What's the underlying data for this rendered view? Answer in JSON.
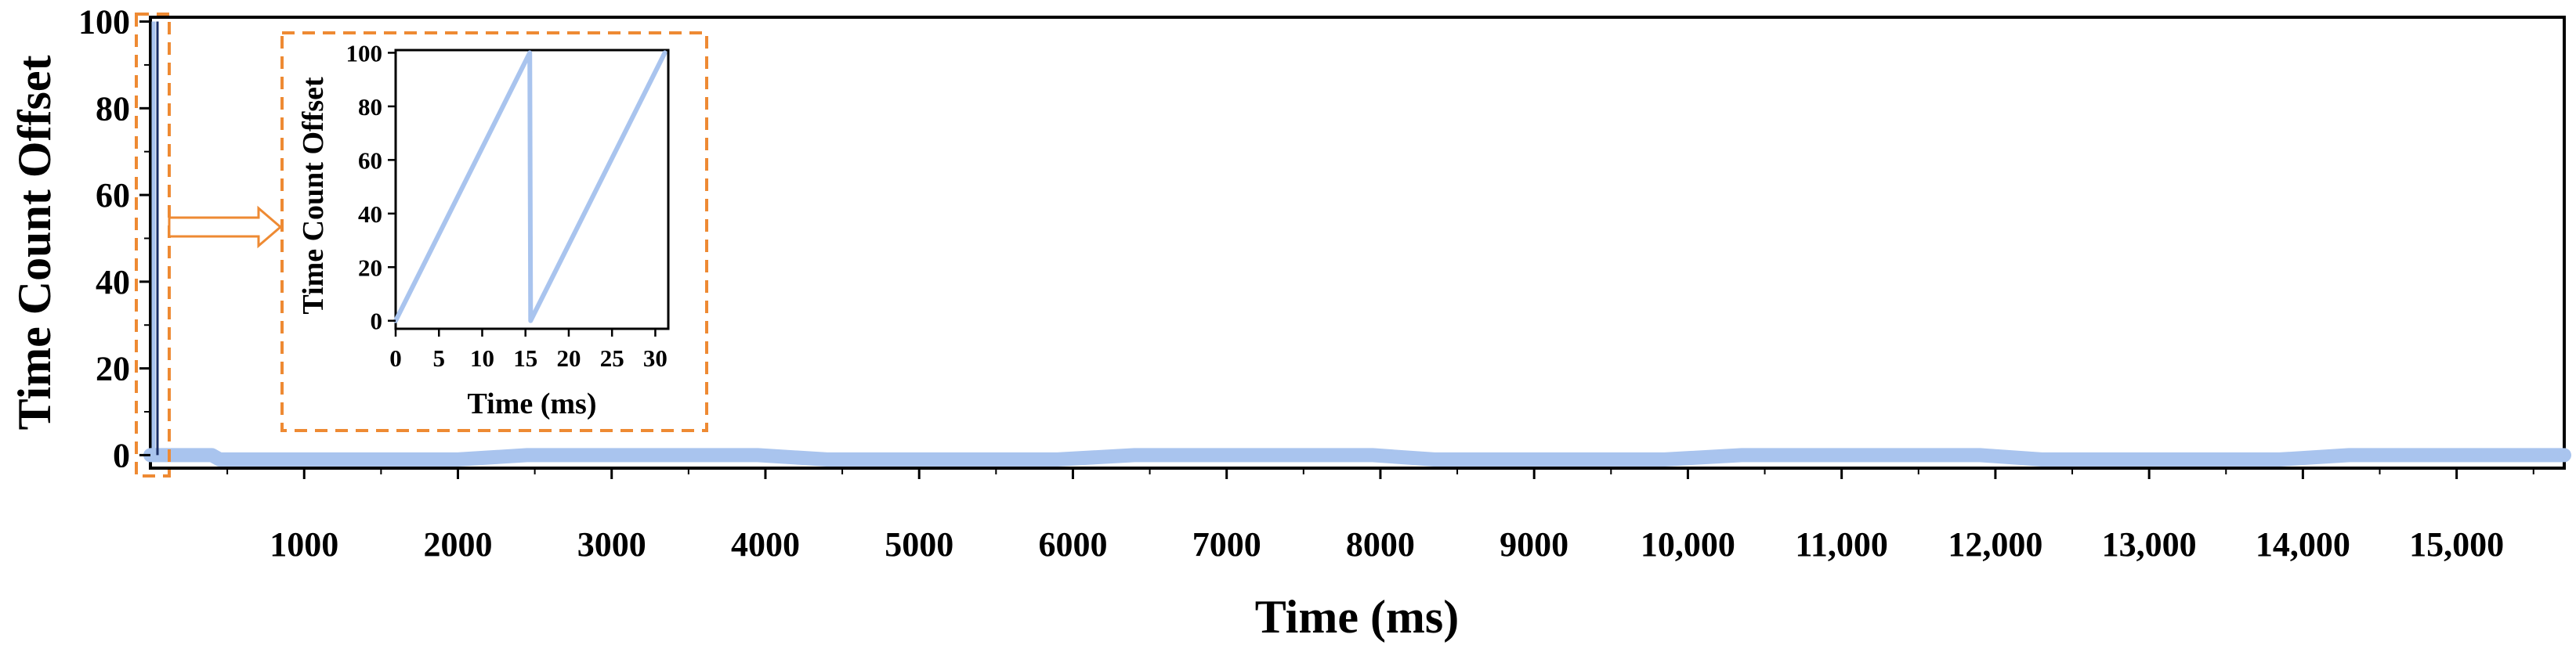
{
  "colors": {
    "series": "#a9c4ee",
    "highlight": "#ee8a33",
    "axis": "#000000"
  },
  "chart_data": [
    {
      "type": "line",
      "name": "main",
      "xlabel": "Time (ms)",
      "ylabel": "Time Count Offset",
      "xlim": [
        0,
        15700
      ],
      "ylim": [
        -3,
        101
      ],
      "xticks": [
        {
          "value": 1000,
          "label": "1000"
        },
        {
          "value": 2000,
          "label": "2000"
        },
        {
          "value": 3000,
          "label": "3000"
        },
        {
          "value": 4000,
          "label": "4000"
        },
        {
          "value": 5000,
          "label": "5000"
        },
        {
          "value": 6000,
          "label": "6000"
        },
        {
          "value": 7000,
          "label": "7000"
        },
        {
          "value": 8000,
          "label": "8000"
        },
        {
          "value": 9000,
          "label": "9000"
        },
        {
          "value": 10000,
          "label": "10,000"
        },
        {
          "value": 11000,
          "label": "11,000"
        },
        {
          "value": 12000,
          "label": "12,000"
        },
        {
          "value": 13000,
          "label": "13,000"
        },
        {
          "value": 14000,
          "label": "14,000"
        },
        {
          "value": 15000,
          "label": "15,000"
        }
      ],
      "yticks": [
        {
          "value": 0,
          "label": "0"
        },
        {
          "value": 20,
          "label": "20"
        },
        {
          "value": 40,
          "label": "40"
        },
        {
          "value": 60,
          "label": "60"
        },
        {
          "value": 80,
          "label": "80"
        },
        {
          "value": 100,
          "label": "100"
        }
      ],
      "period_ms": 15.6,
      "series": [
        {
          "x": [
            0,
            400,
            450,
            2000,
            2450,
            3950,
            4400,
            5900,
            6400,
            7950,
            8350,
            9850,
            10350,
            11900,
            12300,
            13850,
            14300,
            15700
          ],
          "y": [
            0,
            0,
            -1,
            -1,
            0,
            0,
            -1,
            -1,
            0,
            0,
            -1,
            -1,
            0,
            0,
            -1,
            -1,
            0,
            0
          ]
        }
      ],
      "grid": false,
      "legend": "none"
    },
    {
      "type": "line",
      "name": "inset",
      "xlabel": "Time (ms)",
      "ylabel": "Time Count Offset",
      "xlim": [
        0,
        31.5
      ],
      "ylim": [
        -3,
        101
      ],
      "xticks": [
        {
          "value": 0,
          "label": "0"
        },
        {
          "value": 5,
          "label": "5"
        },
        {
          "value": 10,
          "label": "10"
        },
        {
          "value": 15,
          "label": "15"
        },
        {
          "value": 20,
          "label": "20"
        },
        {
          "value": 25,
          "label": "25"
        },
        {
          "value": 30,
          "label": "30"
        }
      ],
      "yticks": [
        {
          "value": 0,
          "label": "0"
        },
        {
          "value": 20,
          "label": "20"
        },
        {
          "value": 40,
          "label": "40"
        },
        {
          "value": 60,
          "label": "60"
        },
        {
          "value": 80,
          "label": "80"
        },
        {
          "value": 100,
          "label": "100"
        }
      ],
      "series": [
        {
          "x": [
            0,
            15.5,
            15.6,
            31.1
          ],
          "y": [
            0,
            100,
            0,
            100
          ]
        }
      ],
      "grid": false,
      "legend": "none"
    }
  ]
}
